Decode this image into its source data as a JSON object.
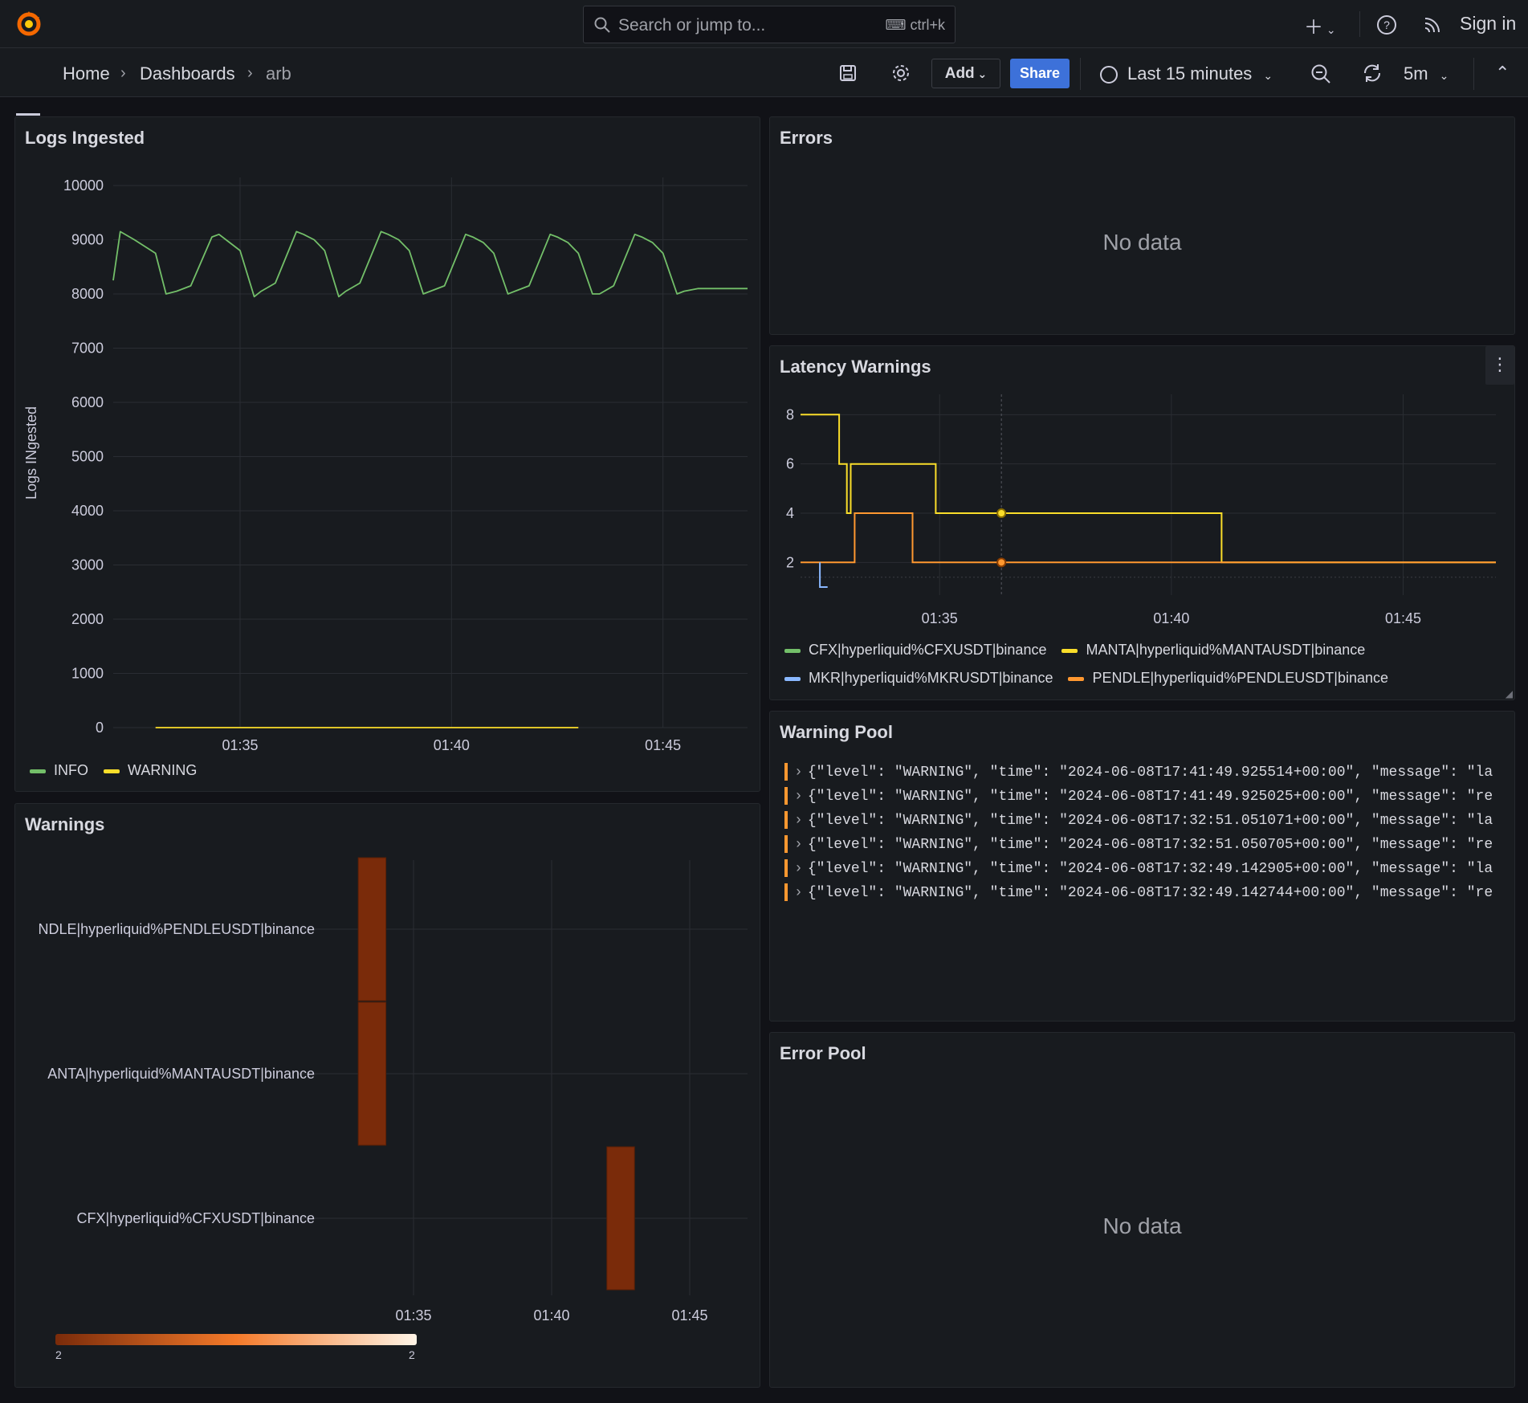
{
  "topbar": {
    "search_placeholder": "Search or jump to...",
    "search_shortcut": "ctrl+k",
    "sign_in": "Sign in"
  },
  "navbar": {
    "breadcrumbs": [
      "Home",
      "Dashboards",
      "arb"
    ],
    "add_label": "Add",
    "share_label": "Share",
    "time_range": "Last 15 minutes",
    "refresh_interval": "5m"
  },
  "colors": {
    "accent_blue": "#3d71d9",
    "info_green": "#73bf69",
    "warning_yellow": "#fade2a",
    "mkr_blue": "#8ab8ff",
    "pendle_orange": "#ff9830",
    "heatmap_dark": "#7a2b0a"
  },
  "panels": {
    "logs_ingested": {
      "title": "Logs Ingested",
      "y_axis_label": "Logs INgested",
      "legend": [
        "INFO",
        "WARNING"
      ]
    },
    "errors": {
      "title": "Errors",
      "no_data": "No data"
    },
    "latency": {
      "title": "Latency Warnings",
      "legend": [
        "CFX|hyperliquid%CFXUSDT|binance",
        "MANTA|hyperliquid%MANTAUSDT|binance",
        "MKR|hyperliquid%MKRUSDT|binance",
        "PENDLE|hyperliquid%PENDLEUSDT|binance"
      ]
    },
    "warnings": {
      "title": "Warnings",
      "scale_min": "2",
      "scale_max": "2"
    },
    "warning_pool": {
      "title": "Warning Pool",
      "logs": [
        "{\"level\": \"WARNING\", \"time\": \"2024-06-08T17:41:49.925514+00:00\", \"message\": \"la",
        "{\"level\": \"WARNING\", \"time\": \"2024-06-08T17:41:49.925025+00:00\", \"message\": \"re",
        "{\"level\": \"WARNING\", \"time\": \"2024-06-08T17:32:51.051071+00:00\", \"message\": \"la",
        "{\"level\": \"WARNING\", \"time\": \"2024-06-08T17:32:51.050705+00:00\", \"message\": \"re",
        "{\"level\": \"WARNING\", \"time\": \"2024-06-08T17:32:49.142905+00:00\", \"message\": \"la",
        "{\"level\": \"WARNING\", \"time\": \"2024-06-08T17:32:49.142744+00:00\", \"message\": \"re"
      ]
    },
    "error_pool": {
      "title": "Error Pool",
      "no_data": "No data"
    }
  },
  "chart_data": [
    {
      "type": "line",
      "title": "Logs Ingested",
      "ylabel": "Logs INgested",
      "xlim": [
        "01:32:00",
        "01:47:00"
      ],
      "ylim": [
        0,
        10000
      ],
      "x_ticks": [
        "01:35",
        "01:40",
        "01:45"
      ],
      "y_ticks": [
        0,
        1000,
        2000,
        3000,
        4000,
        5000,
        6000,
        7000,
        8000,
        9000,
        10000
      ],
      "grid": true,
      "legend_position": "bottom-left",
      "series": [
        {
          "name": "INFO",
          "x": [
            "01:32:00",
            "01:32:10",
            "01:32:30",
            "01:33:00",
            "01:33:15",
            "01:33:30",
            "01:33:50",
            "01:34:20",
            "01:34:30",
            "01:34:45",
            "01:35:00",
            "01:35:20",
            "01:35:30",
            "01:35:50",
            "01:36:20",
            "01:36:30",
            "01:36:45",
            "01:37:00",
            "01:37:20",
            "01:37:30",
            "01:37:50",
            "01:38:20",
            "01:38:30",
            "01:38:45",
            "01:39:00",
            "01:39:20",
            "01:39:30",
            "01:39:50",
            "01:40:20",
            "01:40:30",
            "01:40:45",
            "01:41:00",
            "01:41:20",
            "01:41:30",
            "01:41:50",
            "01:42:20",
            "01:42:30",
            "01:42:45",
            "01:43:00",
            "01:43:20",
            "01:43:30",
            "01:43:50",
            "01:44:20",
            "01:44:30",
            "01:44:45",
            "01:45:00",
            "01:45:20",
            "01:45:30",
            "01:45:50",
            "01:46:20",
            "01:46:30",
            "01:47:00"
          ],
          "y": [
            8250,
            9150,
            9000,
            8750,
            8000,
            8050,
            8150,
            9050,
            9100,
            8950,
            8800,
            7950,
            8050,
            8200,
            9150,
            9100,
            9000,
            8800,
            7950,
            8050,
            8200,
            9150,
            9100,
            9000,
            8800,
            8000,
            8050,
            8150,
            9100,
            9050,
            8950,
            8750,
            8000,
            8050,
            8150,
            9100,
            9050,
            8950,
            8750,
            8000,
            8000,
            8150,
            9100,
            9050,
            8950,
            8750,
            8000,
            8050,
            8100,
            8100,
            8100,
            8100
          ]
        },
        {
          "name": "WARNING",
          "x": [
            "01:33:00",
            "01:34:00",
            "01:42:00",
            "01:43:00"
          ],
          "y": [
            0,
            0,
            0,
            0
          ]
        }
      ]
    },
    {
      "type": "line",
      "title": "Latency Warnings",
      "xlim": [
        "01:32:00",
        "01:47:00"
      ],
      "ylim": [
        1,
        8.5
      ],
      "x_ticks": [
        "01:35",
        "01:40",
        "01:45"
      ],
      "y_ticks": [
        2,
        4,
        6,
        8
      ],
      "grid": true,
      "legend_position": "bottom",
      "series": [
        {
          "name": "MANTA|hyperliquid%MANTAUSDT|binance",
          "x": [
            "01:32:00",
            "01:32:50",
            "01:32:50",
            "01:33:00",
            "01:33:00",
            "01:33:05",
            "01:33:05",
            "01:34:55",
            "01:34:55",
            "01:41:05",
            "01:41:05",
            "01:47:00"
          ],
          "y": [
            8,
            8,
            6,
            6,
            4,
            4,
            6,
            6,
            4,
            4,
            2,
            2
          ]
        },
        {
          "name": "PENDLE|hyperliquid%PENDLEUSDT|binance",
          "x": [
            "01:32:00",
            "01:33:10",
            "01:33:10",
            "01:34:25",
            "01:34:25",
            "01:47:00"
          ],
          "y": [
            2,
            2,
            4,
            4,
            2,
            2
          ]
        },
        {
          "name": "MKR|hyperliquid%MKRUSDT|binance",
          "x": [
            "01:32:25",
            "01:32:25",
            "01:32:35"
          ],
          "y": [
            2,
            1,
            1
          ]
        },
        {
          "name": "CFX|hyperliquid%CFXUSDT|binance",
          "x": [],
          "y": []
        }
      ]
    },
    {
      "type": "heatmap",
      "title": "Warnings",
      "x_ticks": [
        "01:35",
        "01:40",
        "01:45"
      ],
      "categories": [
        "NDLE|hyperliquid%PENDLEUSDT|binance",
        "ANTA|hyperliquid%MANTAUSDT|binance",
        "CFX|hyperliquid%CFXUSDT|binance"
      ],
      "cells": [
        {
          "category": "NDLE|hyperliquid%PENDLEUSDT|binance",
          "x_start": "01:33:00",
          "x_end": "01:34:00",
          "value": 2
        },
        {
          "category": "ANTA|hyperliquid%MANTAUSDT|binance",
          "x_start": "01:33:00",
          "x_end": "01:34:00",
          "value": 2
        },
        {
          "category": "CFX|hyperliquid%CFXUSDT|binance",
          "x_start": "01:42:00",
          "x_end": "01:43:00",
          "value": 2
        }
      ],
      "scale": [
        2,
        2
      ]
    }
  ]
}
